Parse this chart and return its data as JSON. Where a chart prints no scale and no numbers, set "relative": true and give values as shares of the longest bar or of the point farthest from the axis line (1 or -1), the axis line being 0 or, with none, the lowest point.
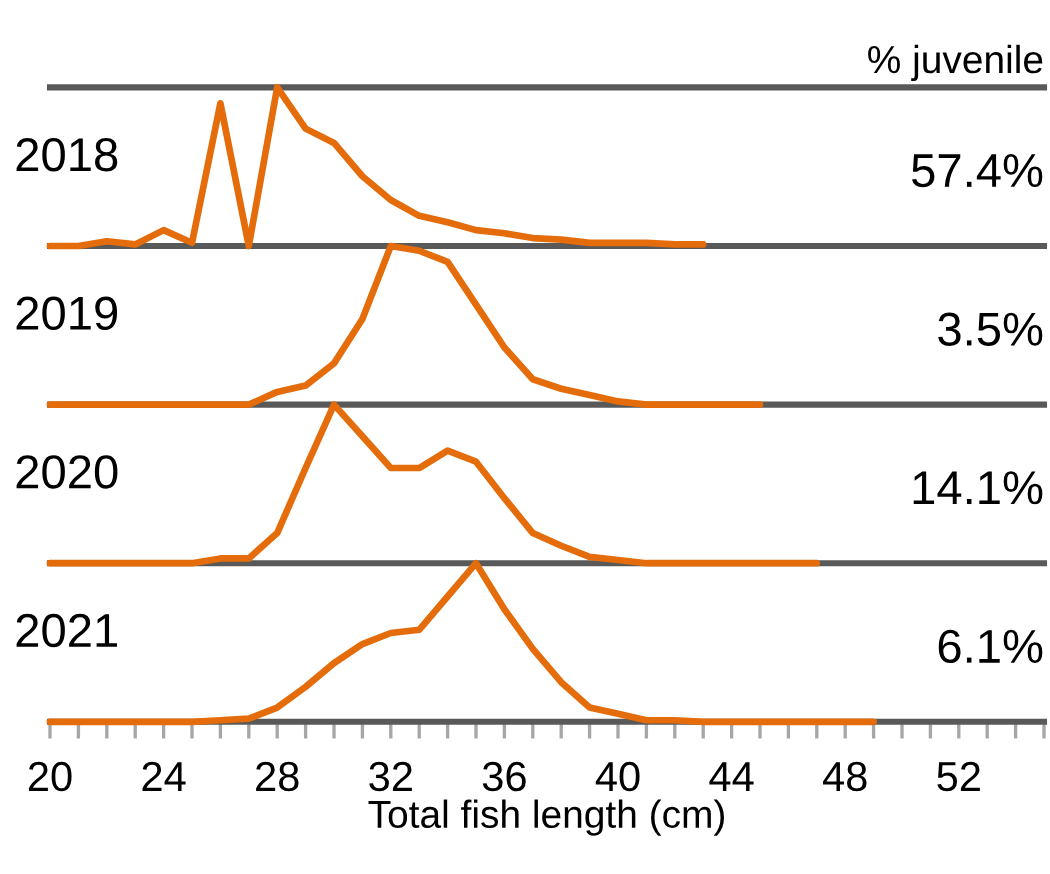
{
  "chart_data": [
    {
      "type": "line",
      "title": "% juvenile",
      "relative": true,
      "xlim": [
        20,
        55
      ],
      "tick_labels": false,
      "annotations": [
        "2018",
        "57.4%"
      ],
      "series": [
        {
          "color": "#e46c0a",
          "x": [
            20,
            21,
            22,
            23,
            24,
            25,
            26,
            27,
            28,
            29,
            30,
            31,
            32,
            33,
            34,
            35,
            36,
            37,
            38,
            39,
            40,
            41,
            42,
            43
          ],
          "values": [
            0,
            0,
            0.03,
            0.01,
            0.1,
            0.02,
            0.9,
            0,
            1,
            0.74,
            0.65,
            0.44,
            0.29,
            0.19,
            0.15,
            0.1,
            0.08,
            0.05,
            0.04,
            0.02,
            0.02,
            0.02,
            0.01,
            0.01
          ]
        }
      ]
    },
    {
      "type": "line",
      "relative": true,
      "xlim": [
        20,
        55
      ],
      "tick_labels": false,
      "annotations": [
        "2019",
        "3.5%"
      ],
      "series": [
        {
          "color": "#e46c0a",
          "x": [
            20,
            21,
            22,
            23,
            24,
            25,
            26,
            27,
            28,
            29,
            30,
            31,
            32,
            33,
            34,
            35,
            36,
            37,
            38,
            39,
            40,
            41,
            42,
            43,
            44,
            45
          ],
          "values": [
            0,
            0,
            0,
            0,
            0,
            0,
            0,
            0,
            0.08,
            0.12,
            0.26,
            0.54,
            1,
            0.97,
            0.9,
            0.63,
            0.36,
            0.16,
            0.1,
            0.06,
            0.02,
            0,
            0,
            0,
            0,
            0
          ]
        }
      ]
    },
    {
      "type": "line",
      "relative": true,
      "xlim": [
        20,
        55
      ],
      "tick_labels": false,
      "annotations": [
        "2020",
        "14.1%"
      ],
      "series": [
        {
          "color": "#e46c0a",
          "x": [
            20,
            21,
            22,
            23,
            24,
            25,
            26,
            27,
            28,
            29,
            30,
            31,
            32,
            33,
            34,
            35,
            36,
            37,
            38,
            39,
            40,
            41,
            42,
            43,
            44,
            45,
            46,
            47
          ],
          "values": [
            0,
            0,
            0,
            0,
            0,
            0,
            0.03,
            0.03,
            0.19,
            0.6,
            1,
            0.8,
            0.6,
            0.6,
            0.71,
            0.64,
            0.41,
            0.19,
            0.11,
            0.04,
            0.02,
            0,
            0,
            0,
            0,
            0,
            0,
            0
          ]
        }
      ]
    },
    {
      "type": "line",
      "relative": true,
      "xlim": [
        20,
        55
      ],
      "tick_labels": "x",
      "xlabel": "Total fish length (cm)",
      "annotations": [
        "2021",
        "6.1%"
      ],
      "xticks": [
        20,
        {
          "value": 21,
          "label": null
        },
        {
          "value": 22,
          "label": null
        },
        {
          "value": 23,
          "label": null
        },
        24,
        {
          "value": 25,
          "label": null
        },
        {
          "value": 26,
          "label": null
        },
        {
          "value": 27,
          "label": null
        },
        28,
        {
          "value": 29,
          "label": null
        },
        {
          "value": 30,
          "label": null
        },
        {
          "value": 31,
          "label": null
        },
        32,
        {
          "value": 33,
          "label": null
        },
        {
          "value": 34,
          "label": null
        },
        {
          "value": 35,
          "label": null
        },
        36,
        {
          "value": 37,
          "label": null
        },
        {
          "value": 38,
          "label": null
        },
        {
          "value": 39,
          "label": null
        },
        40,
        {
          "value": 41,
          "label": null
        },
        {
          "value": 42,
          "label": null
        },
        {
          "value": 43,
          "label": null
        },
        44,
        {
          "value": 45,
          "label": null
        },
        {
          "value": 46,
          "label": null
        },
        {
          "value": 47,
          "label": null
        },
        48,
        {
          "value": 49,
          "label": null
        },
        {
          "value": 50,
          "label": null
        },
        {
          "value": 51,
          "label": null
        },
        52,
        {
          "value": 53,
          "label": null
        },
        {
          "value": 54,
          "label": null
        },
        {
          "value": 55,
          "label": null
        }
      ],
      "series": [
        {
          "color": "#e46c0a",
          "x": [
            20,
            21,
            22,
            23,
            24,
            25,
            26,
            27,
            28,
            29,
            30,
            31,
            32,
            33,
            34,
            35,
            36,
            37,
            38,
            39,
            40,
            41,
            42,
            43,
            44,
            45,
            46,
            47,
            48,
            49
          ],
          "values": [
            0,
            0,
            0,
            0,
            0,
            0,
            0.01,
            0.02,
            0.09,
            0.22,
            0.37,
            0.49,
            0.56,
            0.58,
            0.79,
            1,
            0.71,
            0.46,
            0.25,
            0.09,
            0.05,
            0.01,
            0.01,
            0,
            0,
            0,
            0,
            0,
            0,
            0
          ]
        }
      ]
    }
  ]
}
